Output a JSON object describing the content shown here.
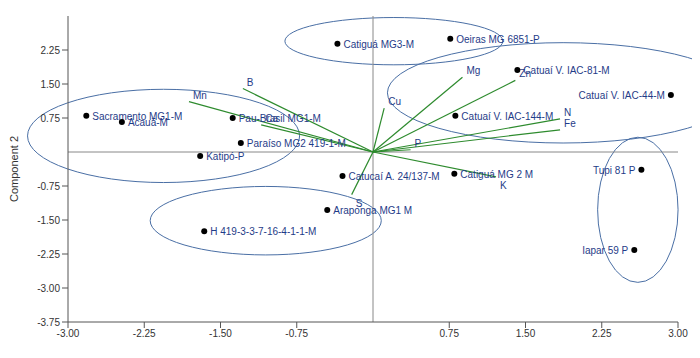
{
  "chart_data": {
    "type": "scatter",
    "y_label": "Component 2",
    "xlim": [
      -3,
      3
    ],
    "ylim": [
      -3.75,
      3
    ],
    "xticks": [
      {
        "value": -3,
        "label": "-3.00"
      },
      -2.25,
      {
        "value": -1.5,
        "label": "-1.50"
      },
      -0.75,
      0.75,
      {
        "value": 1.5,
        "label": "1.50"
      },
      2.25,
      {
        "value": 3,
        "label": "3.00"
      }
    ],
    "yticks": [
      {
        "value": -3.75,
        "label": "-3.75"
      },
      {
        "value": -3,
        "label": "-3.00"
      },
      -2.25,
      {
        "value": -1.5,
        "label": "-1.50"
      },
      -0.75,
      0.75,
      {
        "value": 1.5,
        "label": "1.50"
      },
      2.25
    ],
    "grid": false,
    "series": [
      {
        "type": "scatter",
        "color": "#000000",
        "points": [
          {
            "name": "Sacramento MG1-M",
            "x": -2.82,
            "y": 0.8
          },
          {
            "name": "Acauã-M",
            "x": -2.47,
            "y": 0.66
          },
          {
            "name": "Pau-Brasil MG1-M",
            "x": -1.38,
            "y": 0.75
          },
          {
            "name": "Paraíso MG2 419-1-M",
            "x": -1.3,
            "y": 0.2
          },
          {
            "name": "Katipó-P",
            "x": -1.7,
            "y": -0.09
          },
          {
            "name": "Catiguá MG3-M",
            "x": -0.35,
            "y": 2.39
          },
          {
            "name": "Oeiras MG 6851-P",
            "x": 0.76,
            "y": 2.5
          },
          {
            "name": "Catuaí V. IAC-81-M",
            "x": 1.42,
            "y": 1.81
          },
          {
            "name": "Catuaí V. IAC-44-M",
            "x": 2.93,
            "y": 1.26
          },
          {
            "name": "Catuaí V. IAC-144-M",
            "x": 0.81,
            "y": 0.8
          },
          {
            "name": "Catiguá MG 2 M",
            "x": 0.8,
            "y": -0.48
          },
          {
            "name": "Catucaí A. 24/137-M",
            "x": -0.3,
            "y": -0.53
          },
          {
            "name": "Araponga MG1 M",
            "x": -0.45,
            "y": -1.28
          },
          {
            "name": "H 419-3-3-7-16-4-1-1-M",
            "x": -1.66,
            "y": -1.75
          },
          {
            "name": "Tupi 81 P",
            "x": 2.64,
            "y": -0.39
          },
          {
            "name": "Iapar 59 P",
            "x": 2.57,
            "y": -2.16
          }
        ]
      },
      {
        "type": "vector",
        "color": "#2e8b2e",
        "points": [
          {
            "name": "B",
            "x": -1.28,
            "y": 1.4
          },
          {
            "name": "Mn",
            "x": -1.81,
            "y": 1.11
          },
          {
            "name": "Ca",
            "x": -1.1,
            "y": 0.6
          },
          {
            "name": "Cu",
            "x": 0.11,
            "y": 0.97
          },
          {
            "name": "Mg",
            "x": 0.88,
            "y": 1.65
          },
          {
            "name": "Zn",
            "x": 1.4,
            "y": 1.58
          },
          {
            "name": "N",
            "x": 1.84,
            "y": 0.73
          },
          {
            "name": "Fe",
            "x": 1.84,
            "y": 0.49
          },
          {
            "name": "P",
            "x": 0.37,
            "y": 0.05
          },
          {
            "name": "K",
            "x": 1.21,
            "y": -0.55
          },
          {
            "name": "S",
            "x": -0.21,
            "y": -0.94
          }
        ]
      }
    ],
    "groups": [
      [
        "Sacramento MG1-M",
        "Acauã-M",
        "Pau-Brasil MG1-M",
        "Paraíso MG2 419-1-M",
        "Katipó-P"
      ],
      [
        "Catiguá MG3-M",
        "Oeiras MG 6851-P"
      ],
      [
        "Catuaí V. IAC-81-M",
        "Catuaí V. IAC-44-M",
        "Catuaí V. IAC-144-M"
      ],
      [
        "Tupi 81 P",
        "Iapar 59 P"
      ],
      [
        "H 419-3-3-7-16-4-1-1-M",
        "Araponga MG1 M"
      ]
    ]
  }
}
